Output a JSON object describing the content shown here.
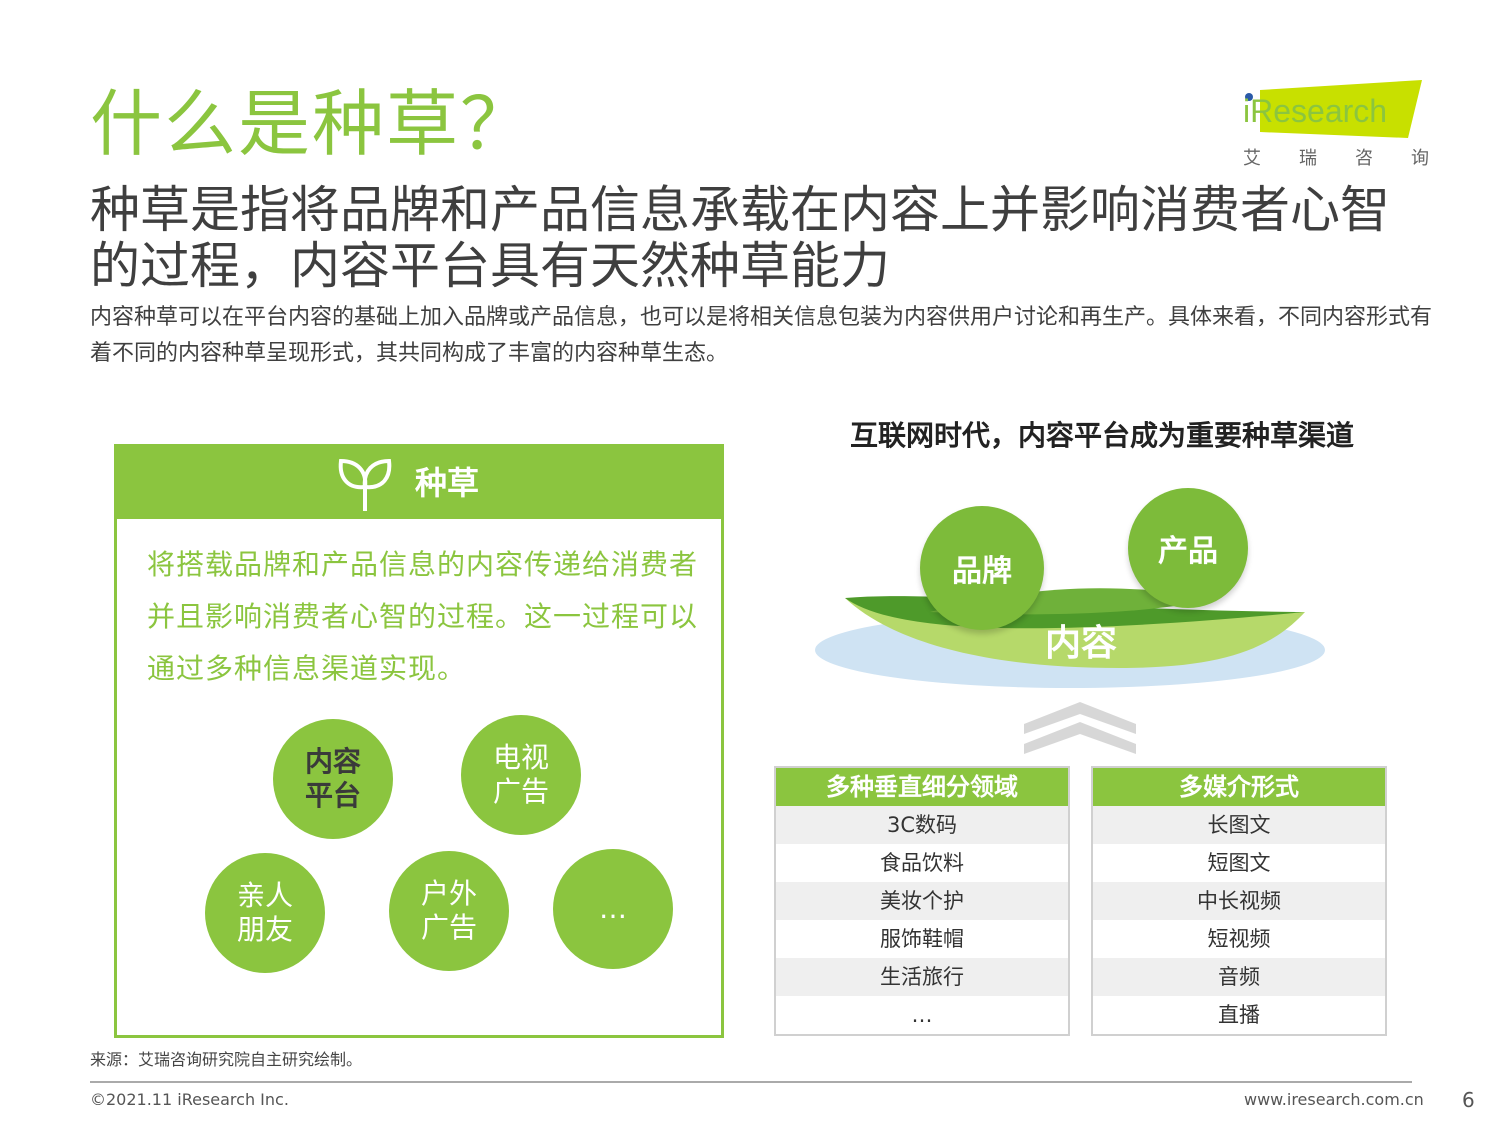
{
  "title": "什么是种草？",
  "headline": "种草是指将品牌和产品信息承载在内容上并影响消费者心智的过程，内容平台具有天然种草能力",
  "intro": "内容种草可以在平台内容的基础上加入品牌或产品信息，也可以是将相关信息包装为内容供用户讨论和再生产。具体来看，不同内容形式有着不同的内容种草呈现形式，其共同构成了丰富的内容种草生态。",
  "logo": {
    "brand": "iResearch",
    "sub": [
      "艾",
      "瑞",
      "咨",
      "询"
    ],
    "accent": "#c8e000",
    "text_color": "#8bc53f"
  },
  "panel": {
    "title": "种草",
    "icon": "sprout-icon",
    "description": "将搭载品牌和产品信息的内容传递给消费者并且影响消费者心智的过程。这一过程可以通过多种信息渠道实现。",
    "channels": [
      "内容平台",
      "电视广告",
      "亲人朋友",
      "户外广告",
      "…"
    ]
  },
  "right": {
    "title": "互联网时代，内容平台成为重要种草渠道",
    "bubble_brand": "品牌",
    "bubble_product": "产品",
    "content_label": "内容",
    "table1": {
      "header": "多种垂直细分领域",
      "rows": [
        "3C数码",
        "食品饮料",
        "美妆个护",
        "服饰鞋帽",
        "生活旅行",
        "…"
      ]
    },
    "table2": {
      "header": "多媒介形式",
      "rows": [
        "长图文",
        "短图文",
        "中长视频",
        "短视频",
        "音频",
        "直播"
      ]
    }
  },
  "footer": {
    "source": "来源：艾瑞咨询研究院自主研究绘制。",
    "copyright": "©2021.11 iResearch Inc.",
    "website": "www.iresearch.com.cn",
    "page": "6"
  },
  "colors": {
    "accent": "#8bc53f",
    "text": "#3f3f3f",
    "leaf_dark": "#4e9a2a",
    "leaf_light": "#b6d96a",
    "water": "#cfe3f3"
  }
}
